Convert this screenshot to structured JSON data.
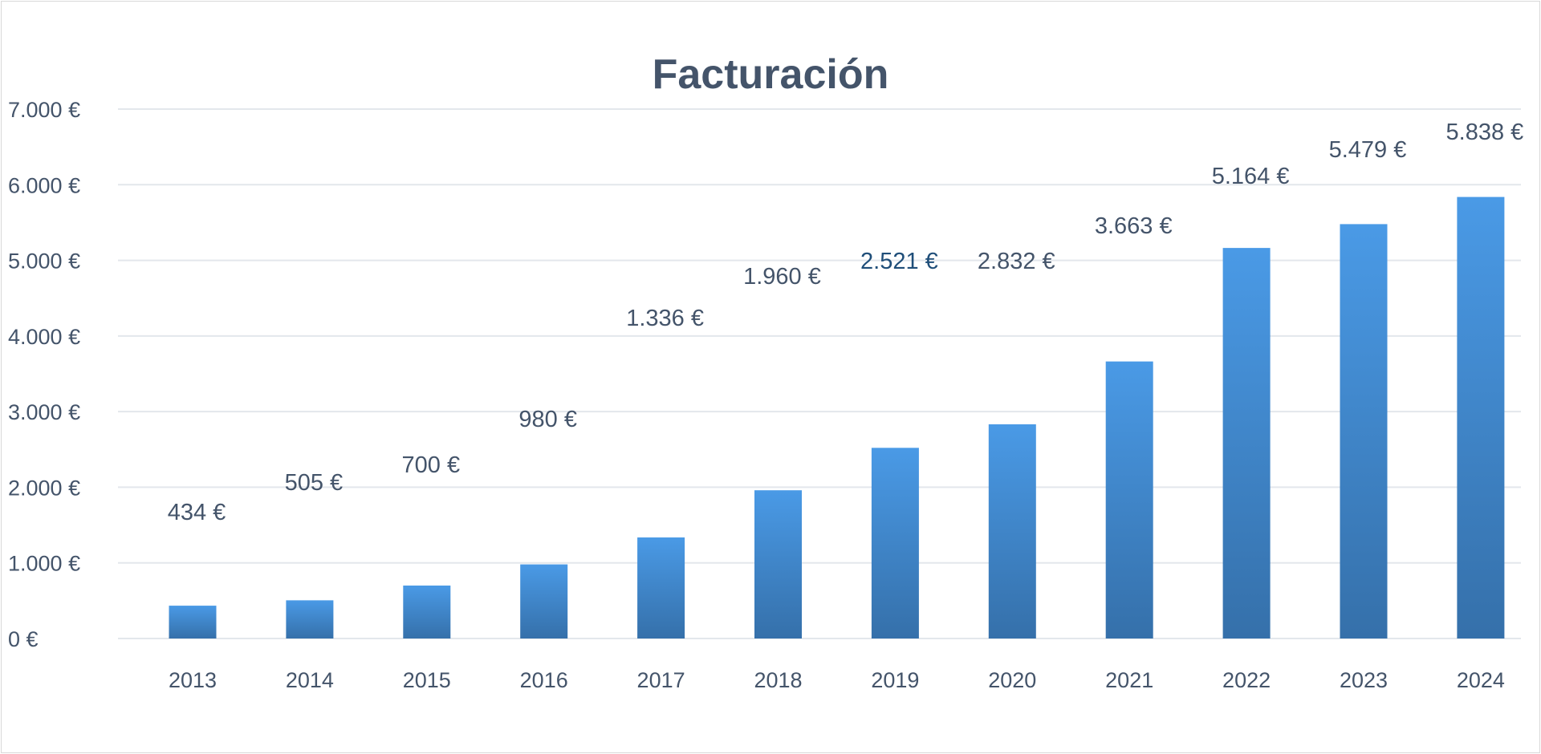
{
  "chart_data": {
    "type": "bar",
    "title": "Facturación",
    "xlabel": "",
    "ylabel": "",
    "categories": [
      "2013",
      "2014",
      "2015",
      "2016",
      "2017",
      "2018",
      "2019",
      "2020",
      "2021",
      "2022",
      "2023",
      "2024"
    ],
    "values": [
      434,
      505,
      700,
      980,
      1336,
      1960,
      2521,
      2832,
      3663,
      5164,
      5479,
      5838
    ],
    "data_labels": [
      "434 €",
      "505 €",
      "700 €",
      "980 €",
      "1.336 €",
      "1.960 €",
      "2.521 €",
      "2.832 €",
      "3.663 €",
      "5.164 €",
      "5.479 €",
      "5.838 €"
    ],
    "ylim": [
      0,
      7000
    ],
    "yticks": [
      0,
      1000,
      2000,
      3000,
      4000,
      5000,
      6000,
      7000
    ],
    "ytick_labels": [
      "0 €",
      "1.000 €",
      "2.000 €",
      "3.000 €",
      "4.000 €",
      "5.000 €",
      "6.000 €",
      "7.000 €"
    ],
    "grid": true,
    "legend": "none",
    "colors": {
      "bar_top": "#4a9ae6",
      "bar_bottom": "#3570aa",
      "text": "#44546a",
      "highlight_label": "#1f4e79",
      "grid": "#e3e7ec"
    }
  }
}
